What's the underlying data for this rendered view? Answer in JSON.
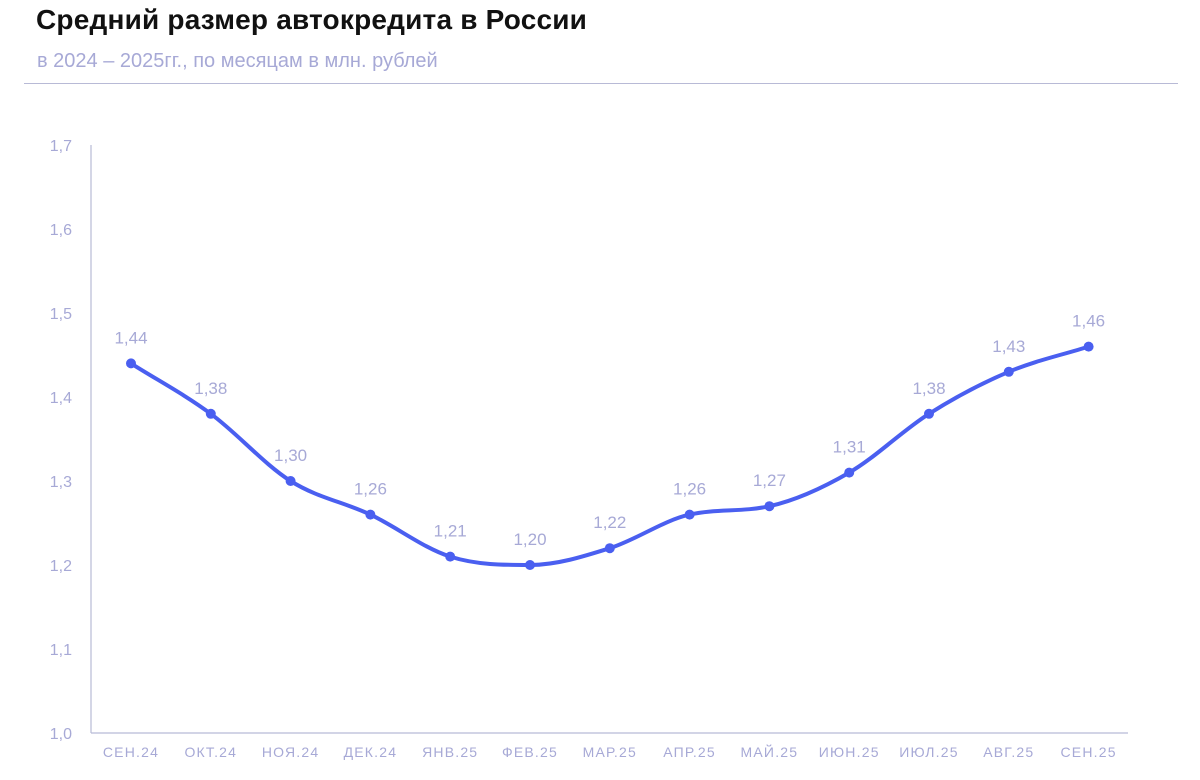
{
  "header": {
    "title": "Средний размер автокредита в России",
    "subtitle": "в 2024 – 2025гг., по месяцам в млн. рублей"
  },
  "colors": {
    "line": "#4a5ff0",
    "axis": "#b8bad6",
    "label": "#a7a9d6",
    "title": "#111111"
  },
  "chart_data": {
    "type": "line",
    "title": "Средний размер автокредита в России",
    "subtitle": "в 2024 – 2025гг., по месяцам в млн. рублей",
    "xlabel": "",
    "ylabel": "",
    "categories": [
      "СЕН.24",
      "ОКТ.24",
      "НОЯ.24",
      "ДЕК.24",
      "ЯНВ.25",
      "ФЕВ.25",
      "МАР.25",
      "АПР.25",
      "МАЙ.25",
      "ИЮН.25",
      "ИЮЛ.25",
      "АВГ.25",
      "СЕН.25"
    ],
    "values": [
      1.44,
      1.38,
      1.3,
      1.26,
      1.21,
      1.2,
      1.22,
      1.26,
      1.27,
      1.31,
      1.38,
      1.43,
      1.46
    ],
    "data_labels": [
      "1,44",
      "1,38",
      "1,30",
      "1,26",
      "1,21",
      "1,20",
      "1,22",
      "1,26",
      "1,27",
      "1,31",
      "1,38",
      "1,43",
      "1,46"
    ],
    "y_ticks": [
      1.0,
      1.1,
      1.2,
      1.3,
      1.4,
      1.5,
      1.6,
      1.7
    ],
    "y_tick_labels": [
      "1,0",
      "1,1",
      "1,2",
      "1,3",
      "1,4",
      "1,5",
      "1,6",
      "1,7"
    ],
    "ylim": [
      1.0,
      1.7
    ],
    "grid": false,
    "legend": "none",
    "smooth": true
  }
}
